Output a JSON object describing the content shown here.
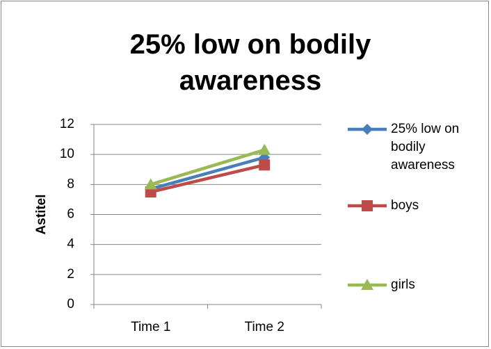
{
  "chart_data": {
    "type": "line",
    "title": "25% low on bodily awareness",
    "y_label": "Astitel",
    "categories": [
      "Time 1",
      "Time 2"
    ],
    "series": [
      {
        "name": "25% low on bodily awareness",
        "color": "#4a7ebb",
        "marker": "diamond",
        "values": [
          7.7,
          9.8
        ]
      },
      {
        "name": "boys",
        "color": "#be4b48",
        "marker": "square",
        "values": [
          7.5,
          9.3
        ]
      },
      {
        "name": "girls",
        "color": "#98b954",
        "marker": "triangle",
        "values": [
          8.0,
          10.3
        ]
      }
    ],
    "ylim": [
      0,
      12
    ],
    "yticks": [
      0,
      2,
      4,
      6,
      8,
      10,
      12
    ],
    "grid": true,
    "legend": "right"
  }
}
